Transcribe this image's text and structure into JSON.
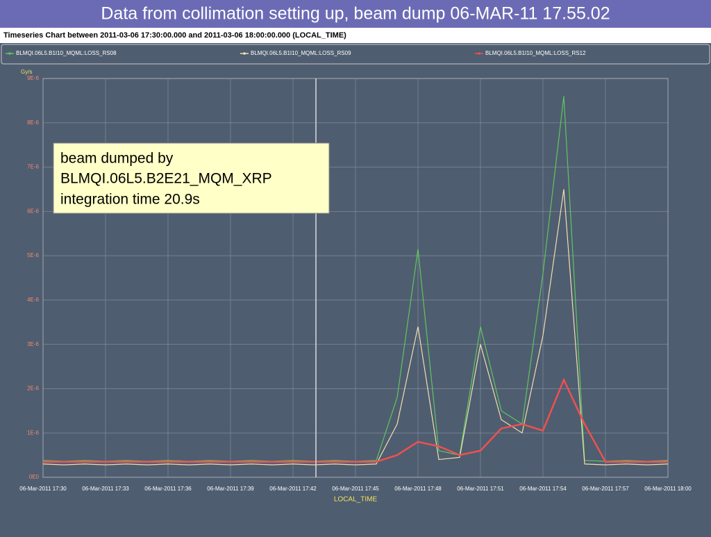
{
  "slide_title": "Data from collimation setting up, beam dump 06-MAR-11 17.55.02",
  "chart_data": {
    "type": "line",
    "title": "Timeseries Chart between 2011-03-06 17:30:00.000 and 2011-03-06 18:00:00.000 (LOCAL_TIME)",
    "y_unit": "Gy/s",
    "x_label": "LOCAL_TIME",
    "annotation": [
      "beam dumped by",
      "BLMQI.06L5.B2E21_MQM_XRP",
      "integration time 20.9s"
    ],
    "x": [
      "06-Mar-2011 17:30",
      "06-Mar-2011 17:31",
      "06-Mar-2011 17:32",
      "06-Mar-2011 17:33",
      "06-Mar-2011 17:34",
      "06-Mar-2011 17:35",
      "06-Mar-2011 17:36",
      "06-Mar-2011 17:37",
      "06-Mar-2011 17:38",
      "06-Mar-2011 17:39",
      "06-Mar-2011 17:40",
      "06-Mar-2011 17:41",
      "06-Mar-2011 17:42",
      "06-Mar-2011 17:43",
      "06-Mar-2011 17:44",
      "06-Mar-2011 17:45",
      "06-Mar-2011 17:46",
      "06-Mar-2011 17:47",
      "06-Mar-2011 17:48",
      "06-Mar-2011 17:49",
      "06-Mar-2011 17:50",
      "06-Mar-2011 17:51",
      "06-Mar-2011 17:52",
      "06-Mar-2011 17:53",
      "06-Mar-2011 17:54",
      "06-Mar-2011 17:55",
      "06-Mar-2011 17:56",
      "06-Mar-2011 17:57",
      "06-Mar-2011 17:58",
      "06-Mar-2011 17:59",
      "06-Mar-2011 18:00"
    ],
    "series": [
      {
        "name": "BLMQI.06L5.B1I10_MQML:LOSS_RS08",
        "color": "#5cc85c",
        "values": [
          3.8e-07,
          3.6e-07,
          3.8e-07,
          3.6e-07,
          3.8e-07,
          3.6e-07,
          3.8e-07,
          3.6e-07,
          3.8e-07,
          3.6e-07,
          3.8e-07,
          3.6e-07,
          3.8e-07,
          3.6e-07,
          3.8e-07,
          3.6e-07,
          3.8e-07,
          1.8e-06,
          5.15e-06,
          6e-07,
          5e-07,
          3.4e-06,
          1.5e-06,
          1.2e-06,
          4.6e-06,
          8.6e-06,
          3.8e-07,
          3.6e-07,
          3.8e-07,
          3.6e-07,
          3.8e-07
        ]
      },
      {
        "name": "BLMQI.06L5.B1I10_MQML:LOSS_RS09",
        "color": "#f0e0b0",
        "values": [
          3e-07,
          2.8e-07,
          3e-07,
          2.8e-07,
          3e-07,
          2.8e-07,
          3e-07,
          2.8e-07,
          3e-07,
          2.8e-07,
          3e-07,
          2.8e-07,
          3e-07,
          2.8e-07,
          3e-07,
          2.8e-07,
          3e-07,
          1.2e-06,
          3.4e-06,
          4e-07,
          4.5e-07,
          3e-06,
          1.3e-06,
          1e-06,
          3.2e-06,
          6.5e-06,
          3e-07,
          2.8e-07,
          3e-07,
          2.8e-07,
          3e-07
        ]
      },
      {
        "name": "BLMQI.06L5.B1I10_MQML:LOSS_RS12",
        "color": "#f05050",
        "values": [
          3.5e-07,
          3.5e-07,
          3.5e-07,
          3.5e-07,
          3.5e-07,
          3.5e-07,
          3.5e-07,
          3.5e-07,
          3.5e-07,
          3.5e-07,
          3.5e-07,
          3.5e-07,
          3.5e-07,
          3.5e-07,
          3.5e-07,
          3.5e-07,
          3.5e-07,
          5e-07,
          8e-07,
          7e-07,
          5e-07,
          6e-07,
          1.1e-06,
          1.2e-06,
          1.05e-06,
          2.2e-06,
          1.2e-06,
          3.5e-07,
          3.5e-07,
          3.5e-07,
          3.5e-07
        ]
      }
    ],
    "xlim": [
      "06-Mar-2011 17:30",
      "06-Mar-2011 18:00"
    ],
    "xticks": [
      "06-Mar-2011 17:30",
      "06-Mar-2011 17:33",
      "06-Mar-2011 17:36",
      "06-Mar-2011 17:39",
      "06-Mar-2011 17:42",
      "06-Mar-2011 17:45",
      "06-Mar-2011 17:48",
      "06-Mar-2011 17:51",
      "06-Mar-2011 17:54",
      "06-Mar-2011 17:57",
      "06-Mar-2011 18:00"
    ],
    "ylim": [
      0,
      9e-06
    ],
    "yticks": [
      {
        "value": 0,
        "label": "0E0"
      },
      {
        "value": 1e-06,
        "label": "1E-6"
      },
      {
        "value": 2e-06,
        "label": "2E-6"
      },
      {
        "value": 3e-06,
        "label": "3E-6"
      },
      {
        "value": 4e-06,
        "label": "4E-6"
      },
      {
        "value": 5e-06,
        "label": "5E-6"
      },
      {
        "value": 6e-06,
        "label": "6E-6"
      },
      {
        "value": 7e-06,
        "label": "7E-6"
      },
      {
        "value": 8e-06,
        "label": "8E-6"
      },
      {
        "value": 9e-06,
        "label": "9E-6"
      }
    ],
    "grid": true
  }
}
